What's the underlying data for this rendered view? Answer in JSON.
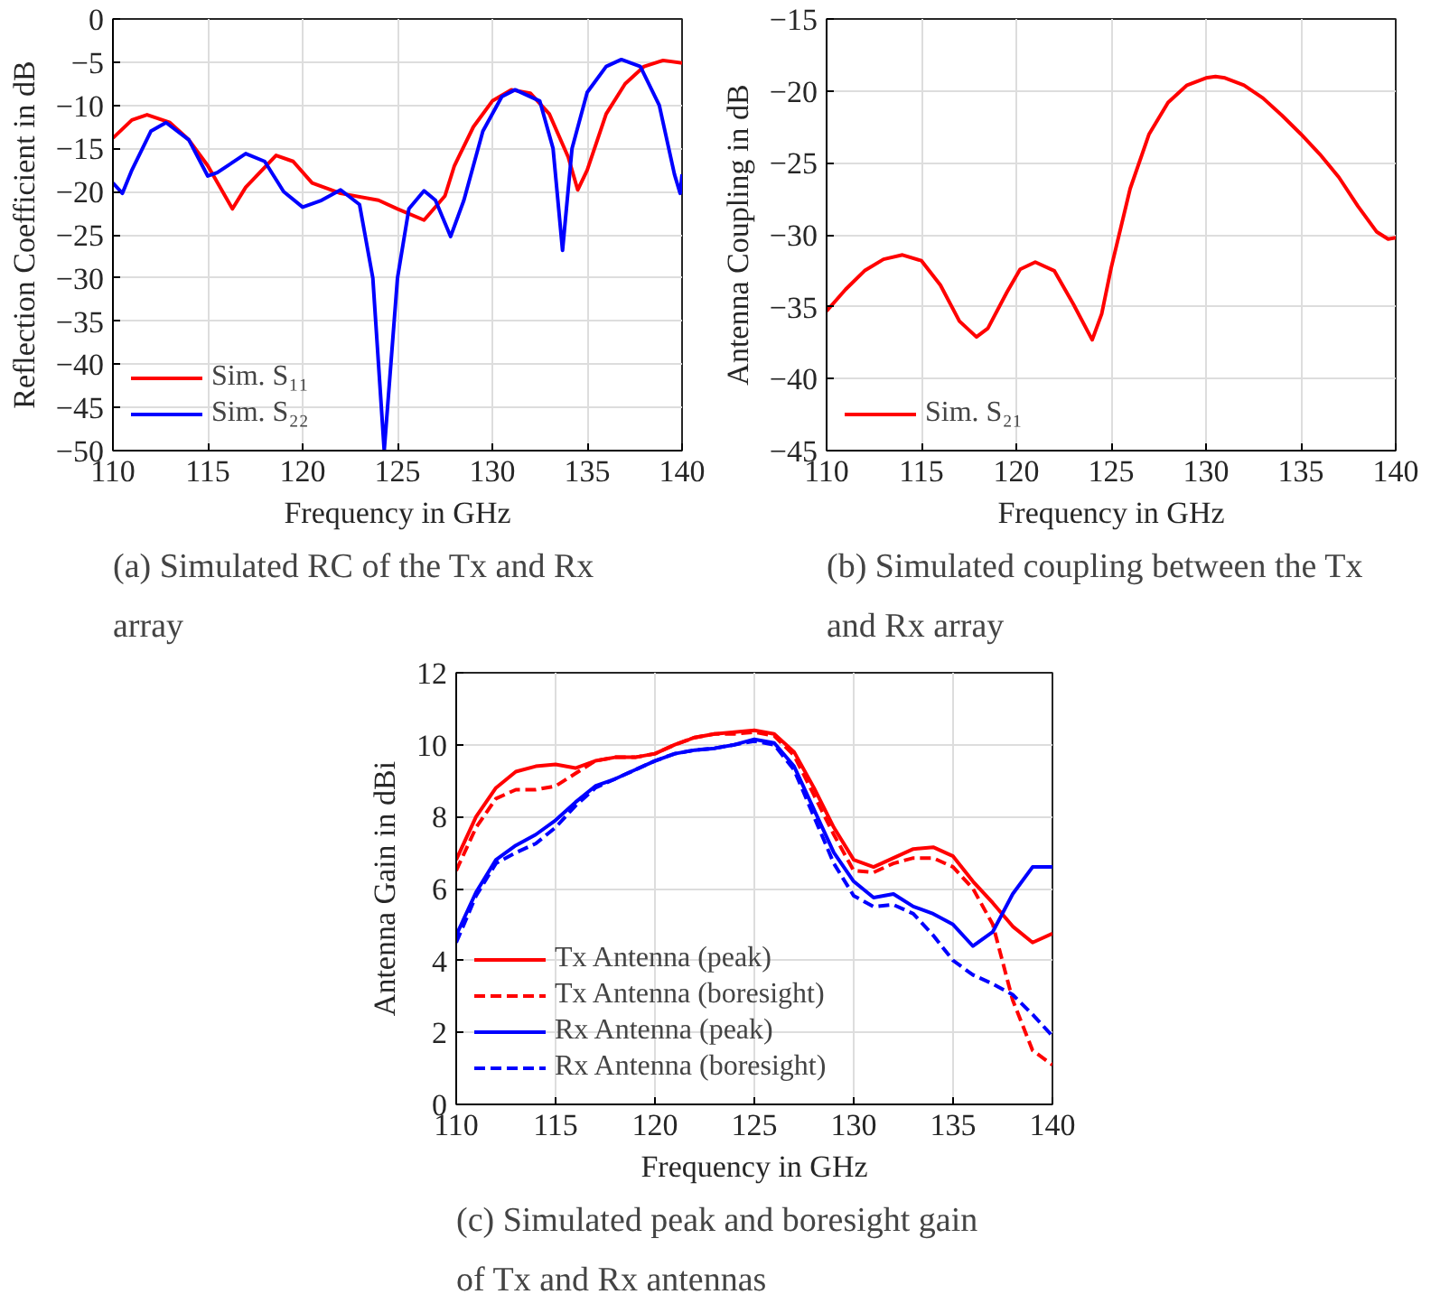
{
  "chart_data": [
    {
      "type": "line",
      "title": "(a) Simulated RC of the Tx and Rx array",
      "xlabel": "Frequency in GHz",
      "ylabel": "Reflection Coefficient in dB",
      "xlim": [
        110,
        140
      ],
      "xticks": [
        110,
        115,
        120,
        125,
        130,
        135,
        140
      ],
      "ylim": [
        -50,
        0
      ],
      "yticks": [
        -50,
        -45,
        -40,
        -35,
        -30,
        -25,
        -20,
        -15,
        -10,
        -5,
        0
      ],
      "grid": true,
      "legend": "bottom left",
      "marker": "none",
      "line_style": "solid",
      "series": [
        {
          "name": "Sim. S₁₁",
          "color": "#ff0000",
          "x": [
            110,
            111,
            111.8,
            113,
            114,
            115,
            116.3,
            117,
            118.6,
            119.5,
            120.5,
            122,
            124,
            125,
            126.4,
            127.5,
            128,
            129,
            130,
            131,
            132,
            133,
            134,
            134.5,
            135,
            136,
            137,
            138,
            139,
            140
          ],
          "values": [
            -13.8,
            -11.7,
            -11.1,
            -12,
            -14,
            -17,
            -22,
            -19.5,
            -15.8,
            -16.5,
            -19,
            -20.2,
            -21,
            -22,
            -23.3,
            -20.5,
            -17,
            -12.5,
            -9.5,
            -8.2,
            -8.6,
            -11,
            -16,
            -19.8,
            -17.5,
            -11,
            -7.5,
            -5.5,
            -4.8,
            -5.1
          ]
        },
        {
          "name": "Sim. S₂₂",
          "color": "#0000ff",
          "x": [
            110,
            110.5,
            111,
            112,
            112.8,
            114,
            115,
            115.5,
            117,
            118,
            119,
            120,
            121,
            122,
            123,
            123.7,
            124.3,
            125,
            125.6,
            126.4,
            127,
            127.8,
            128.5,
            129.5,
            130.5,
            131.2,
            132.5,
            133.2,
            133.7,
            134.2,
            135,
            136,
            136.8,
            137.8,
            138.8,
            139.6,
            139.9,
            140
          ],
          "values": [
            -19,
            -20.2,
            -17.5,
            -13,
            -12,
            -14,
            -18.2,
            -17.8,
            -15.6,
            -16.5,
            -20,
            -21.8,
            -21,
            -19.8,
            -21.5,
            -30,
            -50,
            -30,
            -22,
            -19.9,
            -21,
            -25.2,
            -21,
            -13,
            -9,
            -8.2,
            -9.5,
            -15,
            -26.8,
            -15,
            -8.5,
            -5.5,
            -4.7,
            -5.5,
            -10,
            -18,
            -20.2,
            -18
          ]
        }
      ]
    },
    {
      "type": "line",
      "title": "(b) Simulated coupling between the Tx and Rx array",
      "xlabel": "Frequency in GHz",
      "ylabel": "Antenna Coupling in dB",
      "xlim": [
        110,
        140
      ],
      "xticks": [
        110,
        115,
        120,
        125,
        130,
        135,
        140
      ],
      "ylim": [
        -45,
        -15
      ],
      "yticks": [
        -45,
        -40,
        -35,
        -30,
        -25,
        -20,
        -15
      ],
      "grid": true,
      "legend": "bottom left",
      "marker": "none",
      "line_style": "solid",
      "series": [
        {
          "name": "Sim. S₂₁",
          "color": "#ff0000",
          "x": [
            110,
            111,
            112,
            113,
            114,
            115,
            116,
            117,
            117.9,
            118.5,
            119.5,
            120.2,
            121,
            122,
            123,
            124,
            124.5,
            125,
            126,
            127,
            128,
            129,
            130,
            130.5,
            131,
            132,
            133,
            134,
            135,
            136,
            137,
            138,
            139,
            139.6,
            140
          ],
          "values": [
            -35.3,
            -33.8,
            -32.5,
            -31.7,
            -31.4,
            -31.8,
            -33.5,
            -36,
            -37.1,
            -36.5,
            -34,
            -32.4,
            -31.9,
            -32.5,
            -34.8,
            -37.3,
            -35.5,
            -32.3,
            -26.8,
            -23,
            -20.8,
            -19.6,
            -19.1,
            -19,
            -19.1,
            -19.6,
            -20.5,
            -21.7,
            -23,
            -24.4,
            -26,
            -28,
            -29.8,
            -30.3,
            -30.2
          ]
        }
      ]
    },
    {
      "type": "line",
      "title": "(c) Simulated peak and boresight gain of Tx and Rx antennas",
      "xlabel": "Frequency in GHz",
      "ylabel": "Antenna Gain in dBi",
      "xlim": [
        110,
        140
      ],
      "xticks": [
        110,
        115,
        120,
        125,
        130,
        135,
        140
      ],
      "ylim": [
        0,
        12
      ],
      "yticks": [
        0,
        2,
        4,
        6,
        8,
        10,
        12
      ],
      "grid": true,
      "legend": "bottom left",
      "marker": "none",
      "x": [
        110,
        111,
        112,
        113,
        114,
        115,
        116,
        117,
        118,
        119,
        120,
        121,
        122,
        123,
        124,
        125,
        126,
        127,
        128,
        129,
        130,
        131,
        132,
        133,
        134,
        135,
        136,
        137,
        138,
        139,
        140
      ],
      "series": [
        {
          "name": "Tx Antenna (peak)",
          "color": "#ff0000",
          "line_style": "solid",
          "values": [
            6.8,
            8.0,
            8.8,
            9.25,
            9.4,
            9.45,
            9.35,
            9.55,
            9.65,
            9.65,
            9.75,
            10.0,
            10.2,
            10.3,
            10.35,
            10.4,
            10.3,
            9.8,
            8.8,
            7.7,
            6.8,
            6.6,
            6.85,
            7.1,
            7.15,
            6.9,
            6.2,
            5.6,
            4.95,
            4.5,
            4.75
          ]
        },
        {
          "name": "Tx Antenna (boresight)",
          "color": "#ff0000",
          "line_style": "dashed",
          "values": [
            6.5,
            7.7,
            8.5,
            8.75,
            8.75,
            8.85,
            9.2,
            9.55,
            9.65,
            9.65,
            9.75,
            10.0,
            10.2,
            10.3,
            10.3,
            10.35,
            10.25,
            9.7,
            8.6,
            7.5,
            6.5,
            6.45,
            6.7,
            6.85,
            6.85,
            6.6,
            6.0,
            5.0,
            2.9,
            1.5,
            1.1
          ]
        },
        {
          "name": "Rx Antenna (peak)",
          "color": "#0000ff",
          "line_style": "solid",
          "values": [
            4.7,
            5.9,
            6.8,
            7.2,
            7.5,
            7.9,
            8.4,
            8.85,
            9.05,
            9.3,
            9.55,
            9.75,
            9.85,
            9.9,
            10.0,
            10.15,
            10.05,
            9.4,
            8.2,
            7.0,
            6.2,
            5.75,
            5.85,
            5.5,
            5.3,
            5.0,
            4.4,
            4.8,
            5.85,
            6.6,
            6.6
          ]
        },
        {
          "name": "Rx Antenna (boresight)",
          "color": "#0000ff",
          "line_style": "dashed",
          "values": [
            4.5,
            5.8,
            6.7,
            7.0,
            7.25,
            7.7,
            8.3,
            8.8,
            9.05,
            9.3,
            9.55,
            9.75,
            9.85,
            9.9,
            10.0,
            10.1,
            10.0,
            9.3,
            8.0,
            6.7,
            5.8,
            5.5,
            5.55,
            5.3,
            4.7,
            4.0,
            3.6,
            3.35,
            3.05,
            2.5,
            1.9
          ]
        }
      ]
    }
  ]
}
